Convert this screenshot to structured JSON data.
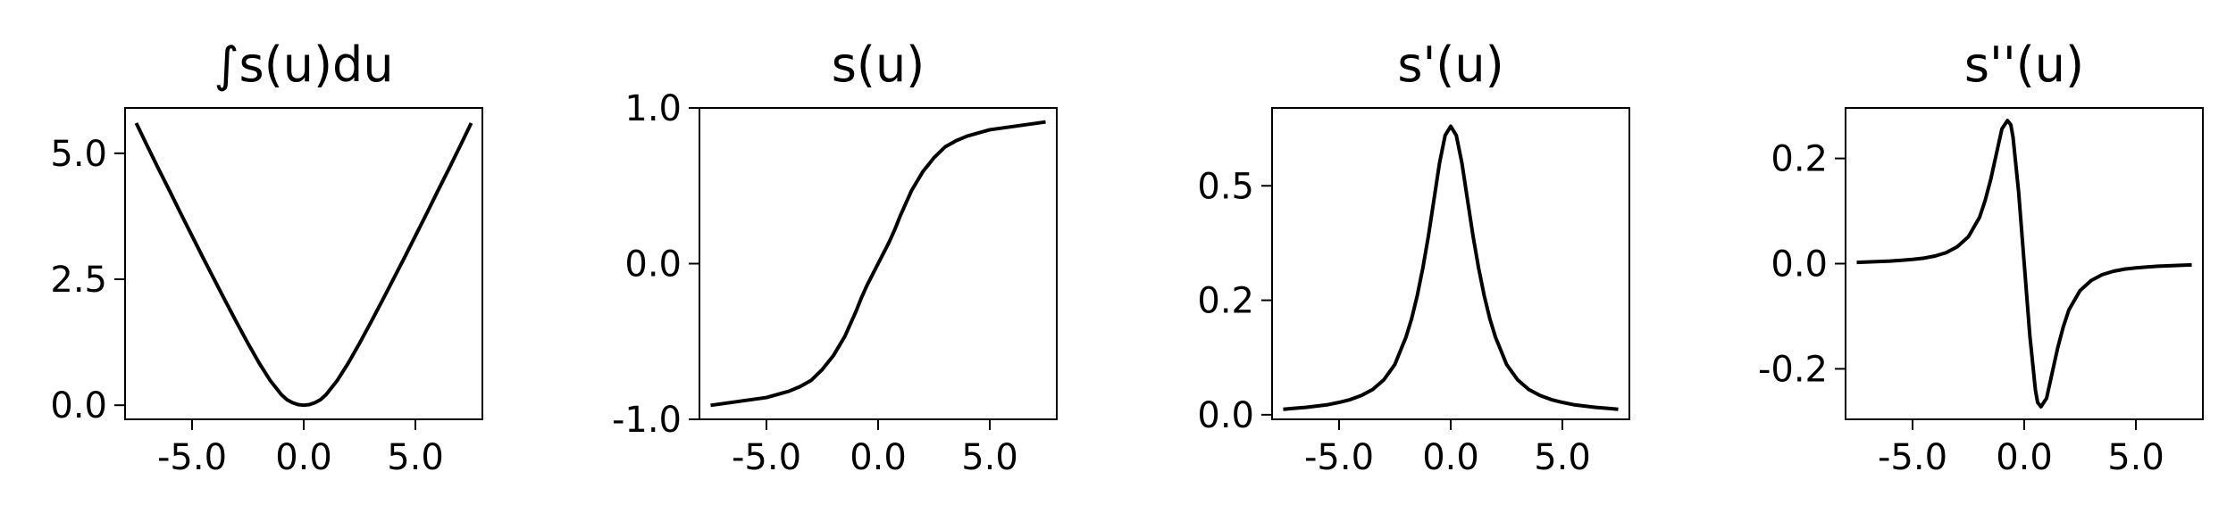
{
  "chart_data": [
    {
      "type": "line",
      "title": "∫s(u)du",
      "xlabel": "",
      "ylabel": "",
      "xlim": [
        -8.0,
        8.0
      ],
      "ylim": [
        -0.28,
        5.9
      ],
      "x_ticks": [
        -5.0,
        0.0,
        5.0
      ],
      "x_tick_labels": [
        "-5.0",
        "0.0",
        "5.0"
      ],
      "y_ticks": [
        0.0,
        2.5,
        5.0
      ],
      "y_tick_labels": [
        "0.0",
        "2.5",
        "5.0"
      ],
      "grid": false,
      "line_color": "#000000",
      "x": [
        -7.5,
        -7.0,
        -6.5,
        -6.0,
        -5.5,
        -5.0,
        -4.5,
        -4.0,
        -3.5,
        -3.0,
        -2.5,
        -2.0,
        -1.5,
        -1.0,
        -0.75,
        -0.5,
        -0.25,
        0.0,
        0.25,
        0.5,
        0.75,
        1.0,
        1.5,
        2.0,
        2.5,
        3.0,
        3.5,
        4.0,
        4.5,
        5.0,
        5.5,
        6.0,
        6.5,
        7.0,
        7.5
      ],
      "y": [
        5.6,
        5.14,
        4.69,
        4.25,
        3.8,
        3.36,
        2.92,
        2.49,
        2.06,
        1.64,
        1.23,
        0.84,
        0.49,
        0.21,
        0.11,
        0.05,
        0.012,
        0.0,
        0.012,
        0.05,
        0.11,
        0.21,
        0.49,
        0.84,
        1.23,
        1.64,
        2.06,
        2.49,
        2.92,
        3.36,
        3.8,
        4.25,
        4.69,
        5.14,
        5.6
      ]
    },
    {
      "type": "line",
      "title": "s(u)",
      "xlabel": "",
      "ylabel": "",
      "xlim": [
        -8.0,
        8.0
      ],
      "ylim": [
        -1.0,
        1.0
      ],
      "x_ticks": [
        -5.0,
        0.0,
        5.0
      ],
      "x_tick_labels": [
        "-5.0",
        "0.0",
        "5.0"
      ],
      "y_ticks": [
        -1.0,
        0.0,
        1.0
      ],
      "y_tick_labels": [
        "-1.0",
        "0.0",
        "1.0"
      ],
      "grid": false,
      "line_color": "#000000",
      "x": [
        -7.5,
        -7.0,
        -6.5,
        -6.0,
        -5.5,
        -5.0,
        -4.5,
        -4.0,
        -3.5,
        -3.0,
        -2.5,
        -2.0,
        -1.5,
        -1.25,
        -1.0,
        -0.75,
        -0.5,
        -0.25,
        0.0,
        0.25,
        0.5,
        0.75,
        1.0,
        1.25,
        1.5,
        2.0,
        2.5,
        3.0,
        3.5,
        4.0,
        4.5,
        5.0,
        5.5,
        6.0,
        6.5,
        7.0,
        7.5
      ],
      "y": [
        -0.91,
        -0.9,
        -0.89,
        -0.88,
        -0.87,
        -0.86,
        -0.84,
        -0.82,
        -0.79,
        -0.75,
        -0.68,
        -0.59,
        -0.47,
        -0.39,
        -0.31,
        -0.22,
        -0.14,
        -0.07,
        0.0,
        0.07,
        0.14,
        0.22,
        0.31,
        0.39,
        0.47,
        0.59,
        0.68,
        0.75,
        0.79,
        0.82,
        0.84,
        0.86,
        0.87,
        0.88,
        0.89,
        0.9,
        0.91
      ]
    },
    {
      "type": "line",
      "title": "s'(u)",
      "xlabel": "",
      "ylabel": "",
      "xlim": [
        -8.0,
        8.0
      ],
      "ylim": [
        -0.01,
        0.67
      ],
      "x_ticks": [
        -5.0,
        0.0,
        5.0
      ],
      "x_tick_labels": [
        "-5.0",
        "0.0",
        "5.0"
      ],
      "y_ticks": [
        0.0,
        0.25,
        0.5
      ],
      "y_tick_labels": [
        "0.0",
        "0.2",
        "0.5"
      ],
      "grid": false,
      "line_color": "#000000",
      "x": [
        -7.5,
        -7.0,
        -6.5,
        -6.0,
        -5.5,
        -5.0,
        -4.5,
        -4.0,
        -3.5,
        -3.0,
        -2.5,
        -2.0,
        -1.75,
        -1.5,
        -1.25,
        -1.0,
        -0.75,
        -0.5,
        -0.25,
        0.0,
        0.25,
        0.5,
        0.75,
        1.0,
        1.25,
        1.5,
        1.75,
        2.0,
        2.5,
        3.0,
        3.5,
        4.0,
        4.5,
        5.0,
        5.5,
        6.0,
        6.5,
        7.0,
        7.5
      ],
      "y": [
        0.012,
        0.014,
        0.016,
        0.019,
        0.022,
        0.027,
        0.033,
        0.042,
        0.055,
        0.076,
        0.11,
        0.17,
        0.21,
        0.26,
        0.32,
        0.39,
        0.47,
        0.55,
        0.61,
        0.63,
        0.61,
        0.55,
        0.47,
        0.39,
        0.32,
        0.26,
        0.21,
        0.17,
        0.11,
        0.076,
        0.055,
        0.042,
        0.033,
        0.027,
        0.022,
        0.019,
        0.016,
        0.014,
        0.012
      ]
    },
    {
      "type": "line",
      "title": "s''(u)",
      "xlabel": "",
      "ylabel": "",
      "xlim": [
        -8.0,
        8.0
      ],
      "ylim": [
        -0.37,
        0.37
      ],
      "x_ticks": [
        -5.0,
        0.0,
        5.0
      ],
      "x_tick_labels": [
        "-5.0",
        "0.0",
        "5.0"
      ],
      "y_ticks": [
        -0.25,
        0.0,
        0.25
      ],
      "y_tick_labels": [
        "-0.2",
        "0.0",
        "0.2"
      ],
      "grid": false,
      "line_color": "#000000",
      "x": [
        -7.5,
        -7.0,
        -6.5,
        -6.0,
        -5.5,
        -5.0,
        -4.5,
        -4.0,
        -3.5,
        -3.0,
        -2.5,
        -2.0,
        -1.75,
        -1.5,
        -1.25,
        -1.0,
        -0.75,
        -0.6,
        -0.5,
        -0.25,
        0.0,
        0.25,
        0.5,
        0.6,
        0.75,
        1.0,
        1.25,
        1.5,
        1.75,
        2.0,
        2.5,
        3.0,
        3.5,
        4.0,
        4.5,
        5.0,
        5.5,
        6.0,
        6.5,
        7.0,
        7.5
      ],
      "y": [
        0.003,
        0.004,
        0.005,
        0.006,
        0.008,
        0.01,
        0.013,
        0.018,
        0.026,
        0.04,
        0.064,
        0.11,
        0.15,
        0.2,
        0.26,
        0.32,
        0.34,
        0.33,
        0.3,
        0.17,
        0.0,
        -0.17,
        -0.3,
        -0.33,
        -0.34,
        -0.32,
        -0.26,
        -0.2,
        -0.15,
        -0.11,
        -0.064,
        -0.04,
        -0.026,
        -0.018,
        -0.013,
        -0.01,
        -0.008,
        -0.006,
        -0.005,
        -0.004,
        -0.003
      ]
    }
  ]
}
